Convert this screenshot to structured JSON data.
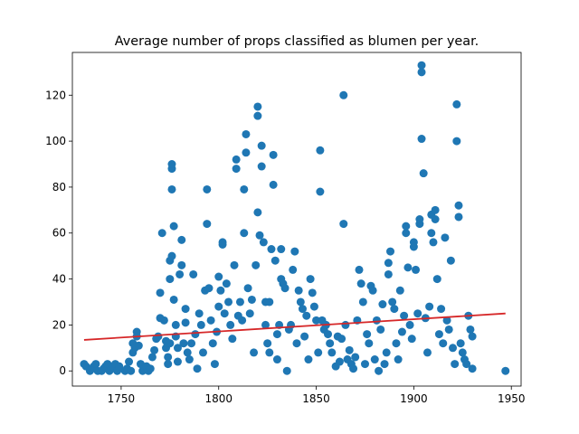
{
  "chart_data": {
    "type": "scatter",
    "title": "Average number of props classified as blumen per year.",
    "xlabel": "",
    "ylabel": "",
    "xlim": [
      1725,
      1955
    ],
    "ylim": [
      -6.6,
      138.6
    ],
    "x_ticks": [
      1750,
      1800,
      1850,
      1900,
      1950
    ],
    "y_ticks": [
      0,
      20,
      40,
      60,
      80,
      100,
      120
    ],
    "grid": false,
    "colors": {
      "points": "#1f77b4",
      "trend": "#d62728"
    },
    "trendline": {
      "x": [
        1731,
        1947
      ],
      "y": [
        13.5,
        25.0
      ]
    },
    "points": [
      [
        1731,
        3
      ],
      [
        1732,
        2
      ],
      [
        1734,
        0
      ],
      [
        1735,
        1
      ],
      [
        1736,
        2
      ],
      [
        1737,
        3
      ],
      [
        1738,
        0
      ],
      [
        1740,
        0
      ],
      [
        1741,
        1
      ],
      [
        1742,
        2
      ],
      [
        1743,
        3
      ],
      [
        1744,
        0
      ],
      [
        1745,
        1
      ],
      [
        1746,
        2
      ],
      [
        1747,
        3
      ],
      [
        1748,
        0
      ],
      [
        1749,
        2
      ],
      [
        1752,
        0
      ],
      [
        1753,
        1
      ],
      [
        1754,
        4
      ],
      [
        1755,
        0
      ],
      [
        1756,
        8
      ],
      [
        1756,
        12
      ],
      [
        1757,
        10
      ],
      [
        1758,
        15
      ],
      [
        1758,
        17
      ],
      [
        1759,
        11
      ],
      [
        1760,
        3
      ],
      [
        1761,
        0
      ],
      [
        1762,
        1
      ],
      [
        1763,
        2
      ],
      [
        1764,
        0
      ],
      [
        1765,
        1
      ],
      [
        1766,
        6
      ],
      [
        1767,
        9
      ],
      [
        1768,
        14
      ],
      [
        1769,
        15
      ],
      [
        1770,
        23
      ],
      [
        1770,
        34
      ],
      [
        1771,
        60
      ],
      [
        1772,
        22
      ],
      [
        1773,
        13
      ],
      [
        1773,
        10
      ],
      [
        1774,
        3
      ],
      [
        1774,
        6
      ],
      [
        1775,
        12
      ],
      [
        1775,
        40
      ],
      [
        1775,
        48
      ],
      [
        1776,
        50
      ],
      [
        1776,
        79
      ],
      [
        1776,
        88
      ],
      [
        1776,
        90
      ],
      [
        1777,
        63
      ],
      [
        1777,
        31
      ],
      [
        1778,
        20
      ],
      [
        1778,
        15
      ],
      [
        1779,
        10
      ],
      [
        1779,
        4
      ],
      [
        1780,
        42
      ],
      [
        1781,
        46
      ],
      [
        1781,
        57
      ],
      [
        1782,
        12
      ],
      [
        1783,
        27
      ],
      [
        1783,
        21
      ],
      [
        1784,
        8
      ],
      [
        1785,
        5
      ],
      [
        1786,
        12
      ],
      [
        1787,
        42
      ],
      [
        1788,
        16
      ],
      [
        1789,
        1
      ],
      [
        1790,
        25
      ],
      [
        1791,
        20
      ],
      [
        1792,
        8
      ],
      [
        1793,
        35
      ],
      [
        1794,
        79
      ],
      [
        1794,
        64
      ],
      [
        1795,
        36
      ],
      [
        1796,
        22
      ],
      [
        1797,
        12
      ],
      [
        1798,
        3
      ],
      [
        1799,
        17
      ],
      [
        1800,
        41
      ],
      [
        1800,
        28
      ],
      [
        1801,
        35
      ],
      [
        1802,
        56
      ],
      [
        1802,
        55
      ],
      [
        1803,
        25
      ],
      [
        1804,
        38
      ],
      [
        1805,
        30
      ],
      [
        1806,
        20
      ],
      [
        1807,
        14
      ],
      [
        1808,
        46
      ],
      [
        1809,
        88
      ],
      [
        1809,
        92
      ],
      [
        1810,
        24
      ],
      [
        1811,
        30
      ],
      [
        1812,
        22
      ],
      [
        1813,
        60
      ],
      [
        1813,
        79
      ],
      [
        1814,
        95
      ],
      [
        1814,
        103
      ],
      [
        1815,
        36
      ],
      [
        1816,
        25
      ],
      [
        1817,
        31
      ],
      [
        1818,
        8
      ],
      [
        1819,
        46
      ],
      [
        1820,
        111
      ],
      [
        1820,
        115
      ],
      [
        1820,
        69
      ],
      [
        1821,
        59
      ],
      [
        1822,
        98
      ],
      [
        1822,
        89
      ],
      [
        1823,
        56
      ],
      [
        1824,
        30
      ],
      [
        1824,
        20
      ],
      [
        1825,
        12
      ],
      [
        1826,
        30
      ],
      [
        1826,
        8
      ],
      [
        1827,
        53
      ],
      [
        1828,
        94
      ],
      [
        1828,
        81
      ],
      [
        1829,
        48
      ],
      [
        1830,
        16
      ],
      [
        1830,
        5
      ],
      [
        1831,
        20
      ],
      [
        1832,
        53
      ],
      [
        1832,
        40
      ],
      [
        1833,
        38
      ],
      [
        1834,
        36
      ],
      [
        1835,
        0
      ],
      [
        1836,
        18
      ],
      [
        1837,
        20
      ],
      [
        1838,
        44
      ],
      [
        1839,
        52
      ],
      [
        1840,
        12
      ],
      [
        1841,
        35
      ],
      [
        1842,
        30
      ],
      [
        1843,
        27
      ],
      [
        1844,
        15
      ],
      [
        1845,
        24
      ],
      [
        1846,
        5
      ],
      [
        1847,
        40
      ],
      [
        1848,
        34
      ],
      [
        1849,
        28
      ],
      [
        1850,
        22
      ],
      [
        1851,
        8
      ],
      [
        1852,
        96
      ],
      [
        1852,
        78
      ],
      [
        1853,
        22
      ],
      [
        1854,
        18
      ],
      [
        1855,
        20
      ],
      [
        1856,
        16
      ],
      [
        1857,
        12
      ],
      [
        1858,
        8
      ],
      [
        1860,
        2
      ],
      [
        1861,
        15
      ],
      [
        1862,
        4
      ],
      [
        1863,
        14
      ],
      [
        1864,
        120
      ],
      [
        1864,
        64
      ],
      [
        1865,
        20
      ],
      [
        1866,
        5
      ],
      [
        1867,
        9
      ],
      [
        1868,
        3
      ],
      [
        1869,
        1
      ],
      [
        1870,
        6
      ],
      [
        1871,
        22
      ],
      [
        1872,
        44
      ],
      [
        1873,
        38
      ],
      [
        1874,
        30
      ],
      [
        1875,
        3
      ],
      [
        1876,
        16
      ],
      [
        1877,
        12
      ],
      [
        1878,
        37
      ],
      [
        1879,
        35
      ],
      [
        1880,
        5
      ],
      [
        1881,
        22
      ],
      [
        1882,
        0
      ],
      [
        1883,
        18
      ],
      [
        1884,
        29
      ],
      [
        1885,
        3
      ],
      [
        1886,
        8
      ],
      [
        1887,
        42
      ],
      [
        1887,
        47
      ],
      [
        1888,
        52
      ],
      [
        1889,
        30
      ],
      [
        1890,
        27
      ],
      [
        1891,
        12
      ],
      [
        1892,
        5
      ],
      [
        1893,
        35
      ],
      [
        1894,
        17
      ],
      [
        1895,
        24
      ],
      [
        1896,
        60
      ],
      [
        1896,
        63
      ],
      [
        1897,
        45
      ],
      [
        1898,
        20
      ],
      [
        1899,
        14
      ],
      [
        1900,
        56
      ],
      [
        1900,
        54
      ],
      [
        1901,
        44
      ],
      [
        1902,
        25
      ],
      [
        1903,
        64
      ],
      [
        1903,
        66
      ],
      [
        1904,
        130
      ],
      [
        1904,
        133
      ],
      [
        1904,
        101
      ],
      [
        1905,
        86
      ],
      [
        1906,
        23
      ],
      [
        1907,
        8
      ],
      [
        1908,
        28
      ],
      [
        1909,
        68
      ],
      [
        1909,
        60
      ],
      [
        1910,
        56
      ],
      [
        1911,
        70
      ],
      [
        1911,
        66
      ],
      [
        1912,
        40
      ],
      [
        1913,
        16
      ],
      [
        1914,
        27
      ],
      [
        1915,
        12
      ],
      [
        1916,
        58
      ],
      [
        1917,
        22
      ],
      [
        1918,
        18
      ],
      [
        1919,
        48
      ],
      [
        1920,
        10
      ],
      [
        1921,
        3
      ],
      [
        1922,
        116
      ],
      [
        1922,
        100
      ],
      [
        1923,
        72
      ],
      [
        1923,
        67
      ],
      [
        1924,
        12
      ],
      [
        1925,
        8
      ],
      [
        1926,
        5
      ],
      [
        1927,
        3
      ],
      [
        1928,
        24
      ],
      [
        1929,
        18
      ],
      [
        1930,
        15
      ],
      [
        1930,
        1
      ],
      [
        1947,
        0
      ]
    ]
  }
}
